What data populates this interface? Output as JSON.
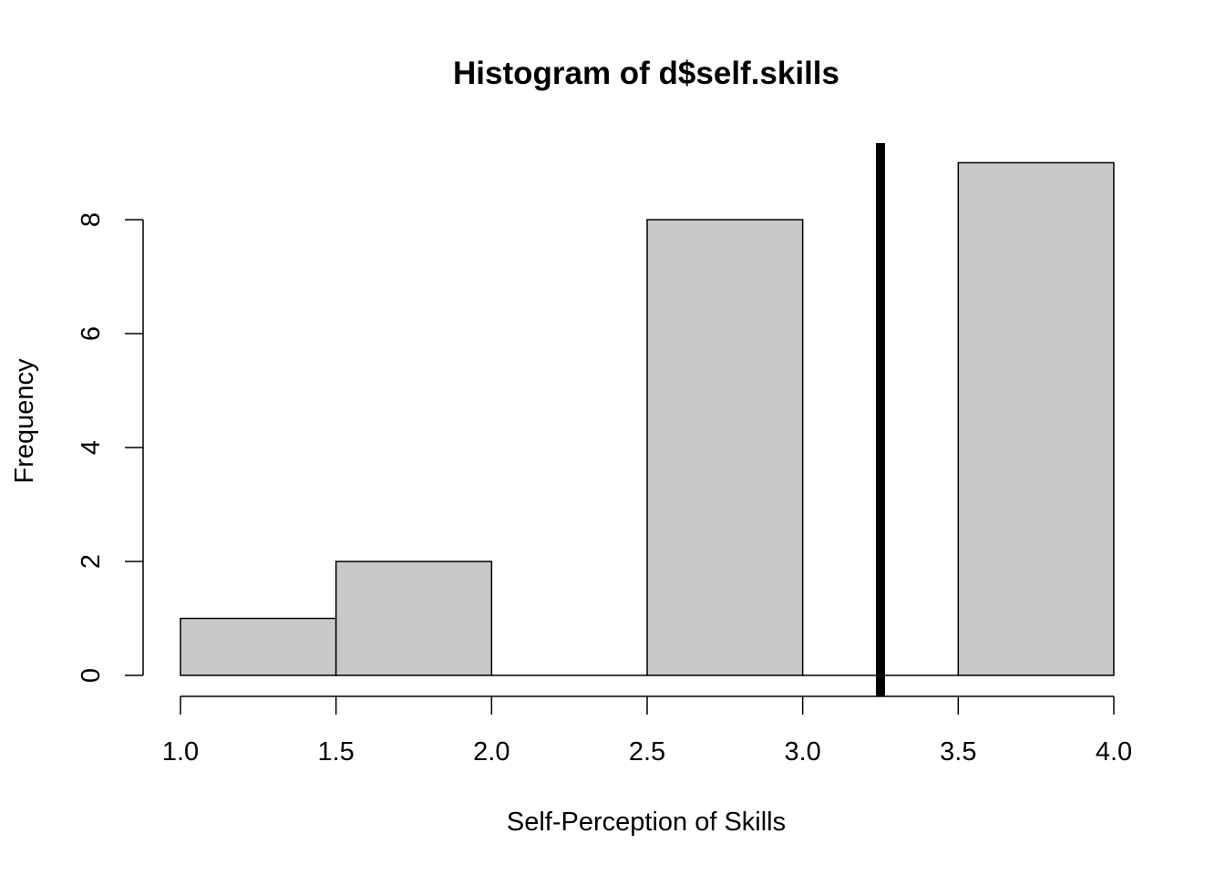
{
  "chart_data": {
    "type": "bar",
    "title": "Histogram of d$self.skills",
    "xlabel": "Self-Perception of Skills",
    "ylabel": "Frequency",
    "bins": [
      {
        "x0": 1.0,
        "x1": 1.5,
        "count": 1
      },
      {
        "x0": 1.5,
        "x1": 2.0,
        "count": 2
      },
      {
        "x0": 2.0,
        "x1": 2.5,
        "count": 0
      },
      {
        "x0": 2.5,
        "x1": 3.0,
        "count": 8
      },
      {
        "x0": 3.0,
        "x1": 3.5,
        "count": 0
      },
      {
        "x0": 3.5,
        "x1": 4.0,
        "count": 9
      }
    ],
    "xticks": [
      "1.0",
      "1.5",
      "2.0",
      "2.5",
      "3.0",
      "3.5",
      "4.0"
    ],
    "yticks": [
      "0",
      "2",
      "4",
      "6",
      "8"
    ],
    "xlim": [
      1.0,
      4.0
    ],
    "ylim": [
      0,
      8
    ],
    "vline": 3.25,
    "bar_fill": "#c8c8c8",
    "grid": false
  }
}
